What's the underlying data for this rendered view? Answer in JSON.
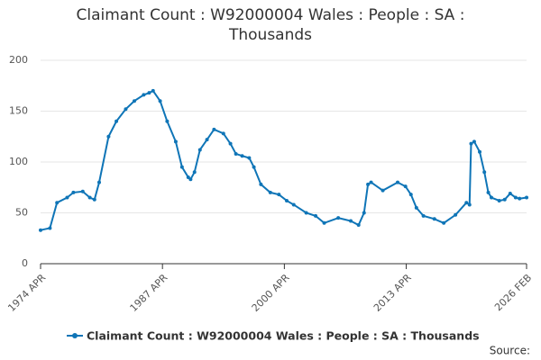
{
  "chart_data": {
    "type": "line",
    "title": "Claimant Count : W92000004 Wales : People : SA : Thousands",
    "source": "Source:",
    "x": [
      "1974-04",
      "1975-04",
      "1976-01",
      "1977-02",
      "1977-10",
      "1978-10",
      "1979-07",
      "1980-01",
      "1980-07",
      "1981-07",
      "1982-05",
      "1983-05",
      "1984-04",
      "1985-04",
      "1985-11",
      "1986-04",
      "1987-01",
      "1987-10",
      "1988-09",
      "1989-05",
      "1990-01",
      "1990-04",
      "1990-09",
      "1991-04",
      "1992-01",
      "1992-10",
      "1993-10",
      "1994-07",
      "1995-02",
      "1995-10",
      "1996-07",
      "1997-01",
      "1997-10",
      "1998-10",
      "1999-09",
      "2000-07",
      "2001-04",
      "2002-08",
      "2003-08",
      "2004-07",
      "2006-01",
      "2007-05",
      "2008-03",
      "2008-10",
      "2009-03",
      "2009-07",
      "2010-10",
      "2012-05",
      "2013-03",
      "2013-10",
      "2014-05",
      "2015-02",
      "2016-04",
      "2017-04",
      "2018-07",
      "2019-09",
      "2020-01",
      "2020-03",
      "2020-07",
      "2021-02",
      "2021-08",
      "2022-01",
      "2022-05",
      "2023-03",
      "2023-10",
      "2024-05",
      "2024-12",
      "2025-05",
      "2026-02"
    ],
    "series": [
      {
        "name": "Claimant Count : W92000004 Wales : People : SA : Thousands",
        "color": "#0f75b7",
        "values": [
          33,
          35,
          60,
          65,
          70,
          71,
          65,
          63,
          80,
          125,
          140,
          152,
          160,
          166,
          168,
          170,
          160,
          140,
          120,
          95,
          85,
          83,
          90,
          112,
          122,
          132,
          128,
          118,
          108,
          106,
          104,
          95,
          78,
          70,
          68,
          62,
          58,
          50,
          47,
          40,
          45,
          42,
          38,
          50,
          78,
          80,
          72,
          80,
          76,
          68,
          55,
          47,
          44,
          40,
          48,
          60,
          58,
          118,
          120,
          110,
          90,
          70,
          65,
          62,
          63,
          69,
          65,
          64,
          65
        ]
      }
    ],
    "xlim": [
      "1974-04",
      "2026-02"
    ],
    "xticks": [
      {
        "value": "1974-04",
        "label": "1974 APR"
      },
      {
        "value": "1987-04",
        "label": "1987 APR"
      },
      {
        "value": "2000-04",
        "label": "2000 APR"
      },
      {
        "value": "2013-04",
        "label": "2013 APR"
      },
      {
        "value": "2026-02",
        "label": "2026 FEB"
      }
    ],
    "ylim": [
      0,
      200
    ],
    "yticks": [
      0,
      50,
      100,
      150,
      200
    ],
    "grid": true
  }
}
